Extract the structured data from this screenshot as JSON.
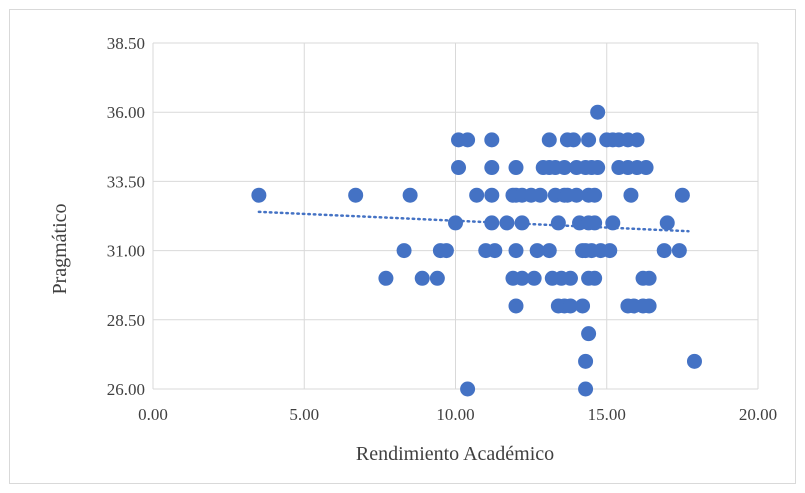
{
  "chart_data": {
    "type": "scatter",
    "title": "",
    "xlabel": "Rendimiento Académico",
    "ylabel": "Pragmático",
    "xlim": [
      0,
      20
    ],
    "ylim": [
      26,
      38.5
    ],
    "x_ticks": [
      "0.00",
      "5.00",
      "10.00",
      "15.00",
      "20.00"
    ],
    "y_ticks": [
      "26.00",
      "28.50",
      "31.00",
      "33.50",
      "36.00",
      "38.50"
    ],
    "x_tick_values": [
      0,
      5,
      10,
      15,
      20
    ],
    "y_tick_values": [
      26,
      28.5,
      31,
      33.5,
      36,
      38.5
    ],
    "grid": true,
    "legend": "none",
    "marker_color": "#4472C4",
    "trendline": {
      "type": "linear",
      "style": "dotted",
      "color": "#4472C4",
      "x": [
        3.5,
        17.7
      ],
      "y": [
        32.4,
        31.7
      ]
    },
    "points": [
      {
        "x": 3.5,
        "y": 33
      },
      {
        "x": 6.7,
        "y": 33
      },
      {
        "x": 7.7,
        "y": 30
      },
      {
        "x": 8.3,
        "y": 31
      },
      {
        "x": 8.5,
        "y": 33
      },
      {
        "x": 8.9,
        "y": 30
      },
      {
        "x": 9.4,
        "y": 30
      },
      {
        "x": 9.5,
        "y": 31
      },
      {
        "x": 9.7,
        "y": 31
      },
      {
        "x": 10.0,
        "y": 32
      },
      {
        "x": 10.1,
        "y": 34
      },
      {
        "x": 10.1,
        "y": 35
      },
      {
        "x": 10.4,
        "y": 35
      },
      {
        "x": 10.4,
        "y": 26
      },
      {
        "x": 10.7,
        "y": 33
      },
      {
        "x": 11.0,
        "y": 31
      },
      {
        "x": 11.2,
        "y": 35
      },
      {
        "x": 11.2,
        "y": 34
      },
      {
        "x": 11.2,
        "y": 33
      },
      {
        "x": 11.2,
        "y": 32
      },
      {
        "x": 11.3,
        "y": 31
      },
      {
        "x": 11.7,
        "y": 32
      },
      {
        "x": 11.9,
        "y": 30
      },
      {
        "x": 11.9,
        "y": 33
      },
      {
        "x": 12.0,
        "y": 34
      },
      {
        "x": 12.0,
        "y": 33
      },
      {
        "x": 12.0,
        "y": 31
      },
      {
        "x": 12.0,
        "y": 29
      },
      {
        "x": 12.2,
        "y": 33
      },
      {
        "x": 12.2,
        "y": 32
      },
      {
        "x": 12.2,
        "y": 30
      },
      {
        "x": 12.5,
        "y": 33
      },
      {
        "x": 12.6,
        "y": 30
      },
      {
        "x": 12.7,
        "y": 31
      },
      {
        "x": 12.8,
        "y": 33
      },
      {
        "x": 12.9,
        "y": 34
      },
      {
        "x": 13.1,
        "y": 35
      },
      {
        "x": 13.1,
        "y": 34
      },
      {
        "x": 13.1,
        "y": 31
      },
      {
        "x": 13.2,
        "y": 30
      },
      {
        "x": 13.3,
        "y": 34
      },
      {
        "x": 13.3,
        "y": 33
      },
      {
        "x": 13.4,
        "y": 32
      },
      {
        "x": 13.4,
        "y": 29
      },
      {
        "x": 13.5,
        "y": 30
      },
      {
        "x": 13.6,
        "y": 34
      },
      {
        "x": 13.6,
        "y": 33
      },
      {
        "x": 13.6,
        "y": 29
      },
      {
        "x": 13.7,
        "y": 35
      },
      {
        "x": 13.7,
        "y": 33
      },
      {
        "x": 13.8,
        "y": 30
      },
      {
        "x": 13.8,
        "y": 29
      },
      {
        "x": 13.9,
        "y": 35
      },
      {
        "x": 14.0,
        "y": 34
      },
      {
        "x": 14.0,
        "y": 33
      },
      {
        "x": 14.1,
        "y": 32
      },
      {
        "x": 14.2,
        "y": 31
      },
      {
        "x": 14.2,
        "y": 29
      },
      {
        "x": 14.3,
        "y": 34
      },
      {
        "x": 14.3,
        "y": 31
      },
      {
        "x": 14.3,
        "y": 27
      },
      {
        "x": 14.3,
        "y": 26
      },
      {
        "x": 14.4,
        "y": 35
      },
      {
        "x": 14.4,
        "y": 33
      },
      {
        "x": 14.4,
        "y": 32
      },
      {
        "x": 14.4,
        "y": 30
      },
      {
        "x": 14.4,
        "y": 28
      },
      {
        "x": 14.5,
        "y": 34
      },
      {
        "x": 14.5,
        "y": 31
      },
      {
        "x": 14.6,
        "y": 32
      },
      {
        "x": 14.6,
        "y": 30
      },
      {
        "x": 14.6,
        "y": 33
      },
      {
        "x": 14.7,
        "y": 36
      },
      {
        "x": 14.7,
        "y": 34
      },
      {
        "x": 14.8,
        "y": 31
      },
      {
        "x": 15.0,
        "y": 35
      },
      {
        "x": 15.1,
        "y": 31
      },
      {
        "x": 15.2,
        "y": 32
      },
      {
        "x": 15.2,
        "y": 35
      },
      {
        "x": 15.4,
        "y": 34
      },
      {
        "x": 15.4,
        "y": 35
      },
      {
        "x": 15.7,
        "y": 34
      },
      {
        "x": 15.7,
        "y": 35
      },
      {
        "x": 15.7,
        "y": 29
      },
      {
        "x": 15.8,
        "y": 33
      },
      {
        "x": 15.9,
        "y": 29
      },
      {
        "x": 16.0,
        "y": 35
      },
      {
        "x": 16.0,
        "y": 34
      },
      {
        "x": 16.2,
        "y": 30
      },
      {
        "x": 16.2,
        "y": 29
      },
      {
        "x": 16.3,
        "y": 34
      },
      {
        "x": 16.4,
        "y": 29
      },
      {
        "x": 16.4,
        "y": 30
      },
      {
        "x": 16.9,
        "y": 31
      },
      {
        "x": 17.0,
        "y": 32
      },
      {
        "x": 17.4,
        "y": 31
      },
      {
        "x": 17.5,
        "y": 33
      },
      {
        "x": 17.9,
        "y": 27
      }
    ]
  }
}
